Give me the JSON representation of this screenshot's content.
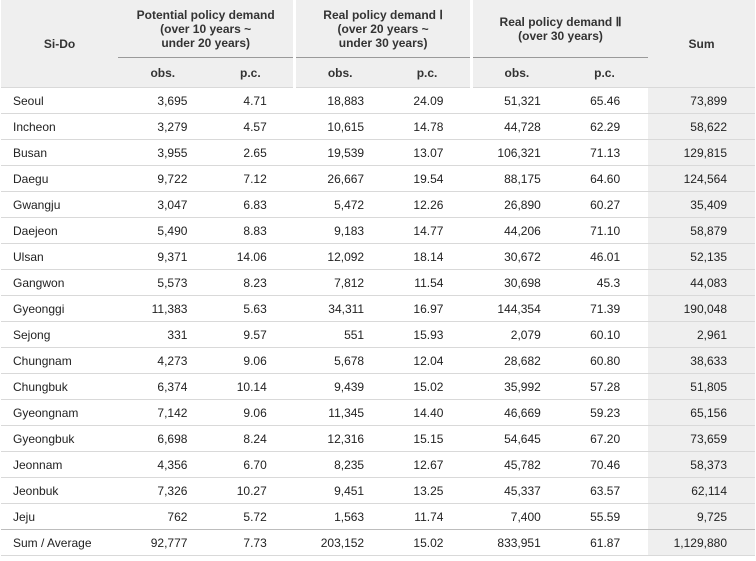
{
  "header": {
    "sido": "Si-Do",
    "group1": [
      "Potential policy demand",
      "(over 10 years ~",
      "under 20 years)"
    ],
    "group2": [
      "Real policy demand Ⅰ",
      "(over 20 years ~",
      "under 30 years)"
    ],
    "group3": [
      "Real policy demand Ⅱ",
      "(over 30 years)"
    ],
    "sum": "Sum",
    "obs": "obs.",
    "pc": "p.c."
  },
  "rows": [
    {
      "name": "Seoul",
      "v": [
        "3,695",
        "4.71",
        "18,883",
        "24.09",
        "51,321",
        "65.46",
        "73,899"
      ]
    },
    {
      "name": "Incheon",
      "v": [
        "3,279",
        "4.57",
        "10,615",
        "14.78",
        "44,728",
        "62.29",
        "58,622"
      ]
    },
    {
      "name": "Busan",
      "v": [
        "3,955",
        "2.65",
        "19,539",
        "13.07",
        "106,321",
        "71.13",
        "129,815"
      ]
    },
    {
      "name": "Daegu",
      "v": [
        "9,722",
        "7.12",
        "26,667",
        "19.54",
        "88,175",
        "64.60",
        "124,564"
      ]
    },
    {
      "name": "Gwangju",
      "v": [
        "3,047",
        "6.83",
        "5,472",
        "12.26",
        "26,890",
        "60.27",
        "35,409"
      ]
    },
    {
      "name": "Daejeon",
      "v": [
        "5,490",
        "8.83",
        "9,183",
        "14.77",
        "44,206",
        "71.10",
        "58,879"
      ]
    },
    {
      "name": "Ulsan",
      "v": [
        "9,371",
        "14.06",
        "12,092",
        "18.14",
        "30,672",
        "46.01",
        "52,135"
      ]
    },
    {
      "name": "Gangwon",
      "v": [
        "5,573",
        "8.23",
        "7,812",
        "11.54",
        "30,698",
        "45.3",
        "44,083"
      ]
    },
    {
      "name": "Gyeonggi",
      "v": [
        "11,383",
        "5.63",
        "34,311",
        "16.97",
        "144,354",
        "71.39",
        "190,048"
      ]
    },
    {
      "name": "Sejong",
      "v": [
        "331",
        "9.57",
        "551",
        "15.93",
        "2,079",
        "60.10",
        "2,961"
      ]
    },
    {
      "name": "Chungnam",
      "v": [
        "4,273",
        "9.06",
        "5,678",
        "12.04",
        "28,682",
        "60.80",
        "38,633"
      ]
    },
    {
      "name": "Chungbuk",
      "v": [
        "6,374",
        "10.14",
        "9,439",
        "15.02",
        "35,992",
        "57.28",
        "51,805"
      ]
    },
    {
      "name": "Gyeongnam",
      "v": [
        "7,142",
        "9.06",
        "11,345",
        "14.40",
        "46,669",
        "59.23",
        "65,156"
      ]
    },
    {
      "name": "Gyeongbuk",
      "v": [
        "6,698",
        "8.24",
        "12,316",
        "15.15",
        "54,645",
        "67.20",
        "73,659"
      ]
    },
    {
      "name": "Jeonnam",
      "v": [
        "4,356",
        "6.70",
        "8,235",
        "12.67",
        "45,782",
        "70.46",
        "58,373"
      ]
    },
    {
      "name": "Jeonbuk",
      "v": [
        "7,326",
        "10.27",
        "9,451",
        "13.25",
        "45,337",
        "63.57",
        "62,114"
      ]
    },
    {
      "name": "Jeju",
      "v": [
        "762",
        "5.72",
        "1,563",
        "11.74",
        "7,400",
        "55.59",
        "9,725"
      ]
    },
    {
      "name": "Sum / Average",
      "v": [
        "92,777",
        "7.73",
        "203,152",
        "15.02",
        "833,951",
        "61.87",
        "1,129,880"
      ]
    }
  ]
}
